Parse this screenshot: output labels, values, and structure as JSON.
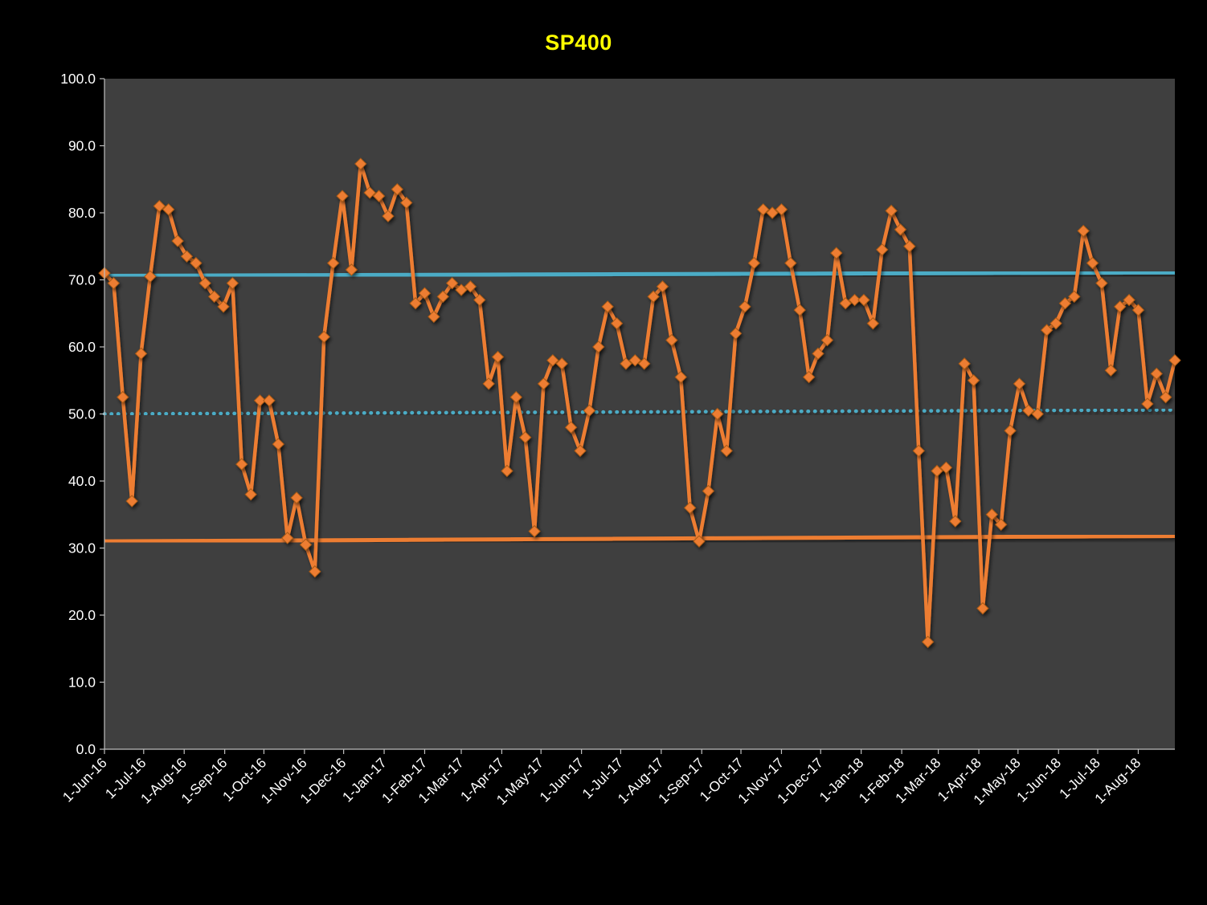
{
  "page": {
    "background": "#000000"
  },
  "chart_data": {
    "type": "line",
    "title": "SP400",
    "title_color": "#FFFF00",
    "plot_bg": "#3F3F3F",
    "axis_color": "#BFBFBF",
    "tick_label_color": "#FFFFFF",
    "grid": false,
    "legend": "none",
    "ylim": [
      0,
      100
    ],
    "y_tick_step": 10,
    "y_tick_labels": [
      "0.0",
      "10.0",
      "20.0",
      "30.0",
      "40.0",
      "50.0",
      "60.0",
      "70.0",
      "80.0",
      "90.0",
      "100.0"
    ],
    "x_tick_labels": [
      "1-Jun-16",
      "1-Jul-16",
      "1-Aug-16",
      "1-Sep-16",
      "1-Oct-16",
      "1-Nov-16",
      "1-Dec-16",
      "1-Jan-17",
      "1-Feb-17",
      "1-Mar-17",
      "1-Apr-17",
      "1-May-17",
      "1-Jun-17",
      "1-Jul-17",
      "1-Aug-17",
      "1-Sep-17",
      "1-Oct-17",
      "1-Nov-17",
      "1-Dec-17",
      "1-Jan-18",
      "1-Feb-18",
      "1-Mar-18",
      "1-Apr-18",
      "1-May-18",
      "1-Jun-18",
      "1-Jul-18",
      "1-Aug-18"
    ],
    "x_start_label": "1-Jun-16",
    "x_step_days": 7,
    "series": [
      {
        "name": "SP400",
        "color": "#ED7D31",
        "marker": "diamond",
        "marker_outline": "#A85A14",
        "values": [
          71.0,
          69.5,
          52.5,
          37.0,
          59.0,
          70.5,
          81.0,
          80.5,
          75.8,
          73.5,
          72.5,
          69.5,
          67.5,
          66.0,
          69.5,
          42.5,
          38.0,
          52.0,
          52.0,
          45.5,
          31.5,
          37.5,
          30.5,
          26.5,
          61.5,
          72.5,
          82.5,
          71.5,
          87.3,
          83.0,
          82.5,
          79.5,
          83.5,
          81.5,
          66.5,
          68.0,
          64.5,
          67.5,
          69.5,
          68.5,
          69.0,
          67.0,
          54.5,
          58.5,
          41.5,
          52.5,
          46.5,
          32.5,
          54.5,
          58.0,
          57.5,
          48.0,
          44.5,
          50.5,
          60.0,
          66.0,
          63.5,
          57.5,
          58.0,
          57.5,
          67.5,
          69.0,
          61.0,
          55.5,
          36.0,
          31.0,
          38.5,
          50.0,
          44.5,
          62.0,
          66.0,
          72.5,
          80.5,
          80.0,
          80.5,
          72.5,
          65.5,
          55.5,
          59.0,
          61.0,
          74.0,
          66.5,
          67.0,
          67.0,
          63.5,
          74.5,
          80.3,
          77.5,
          75.0,
          44.5,
          16.0,
          41.5,
          42.0,
          34.0,
          57.5,
          55.0,
          21.0,
          35.0,
          33.5,
          47.5,
          54.5,
          50.5,
          50.0,
          62.5,
          63.5,
          66.5,
          67.5,
          77.3,
          72.5,
          69.5,
          56.5,
          66.0,
          67.0,
          65.5,
          51.5,
          56.0,
          52.5,
          58.0
        ]
      }
    ],
    "reference_lines": [
      {
        "name": "upper-control-line",
        "color": "#4BACC6",
        "style": "solid",
        "y_start": 70.6,
        "y_end": 71.1
      },
      {
        "name": "center-line",
        "color": "#4BACC6",
        "style": "dotted",
        "y_start": 50.0,
        "y_end": 50.6
      },
      {
        "name": "lower-control-line",
        "color": "#ED7D31",
        "style": "solid",
        "y_start": 31.0,
        "y_end": 31.8
      }
    ]
  }
}
